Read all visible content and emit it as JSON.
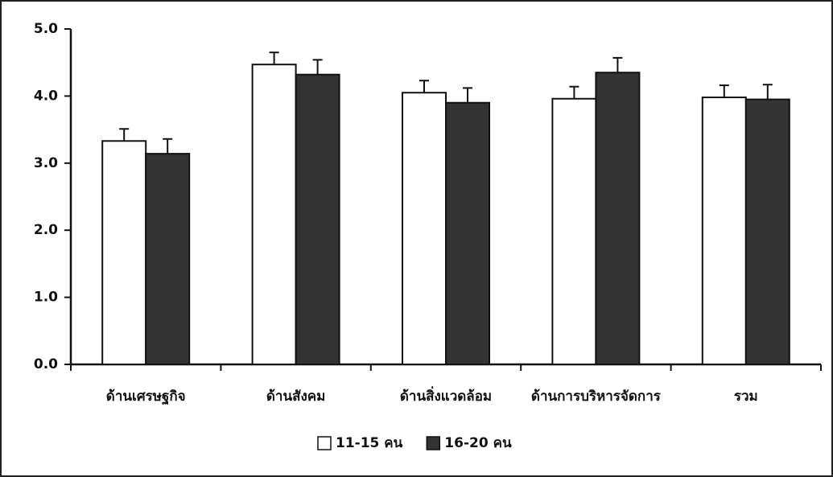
{
  "chart_data": {
    "type": "bar",
    "categories": [
      "ด้านเศรษฐกิจ",
      "ด้านสังคม",
      "ด้านสิ่งแวดล้อม",
      "ด้านการบริหารจัดการ",
      "รวม"
    ],
    "series": [
      {
        "name": "11-15 คน",
        "color": "#ffffff",
        "values": [
          3.33,
          4.47,
          4.05,
          3.96,
          3.98
        ],
        "errors": [
          0.18,
          0.18,
          0.18,
          0.18,
          0.18
        ]
      },
      {
        "name": "16-20 คน",
        "color": "#333333",
        "values": [
          3.14,
          4.32,
          3.9,
          4.35,
          3.95
        ],
        "errors": [
          0.22,
          0.22,
          0.22,
          0.22,
          0.22
        ]
      }
    ],
    "ylim": [
      0,
      5
    ],
    "yticks": [
      {
        "value": 0,
        "label": "0.0"
      },
      {
        "value": 1,
        "label": "1.0"
      },
      {
        "value": 2,
        "label": "2.0"
      },
      {
        "value": 3,
        "label": "3.0"
      },
      {
        "value": 4,
        "label": "4.0"
      },
      {
        "value": 5,
        "label": "5.0"
      }
    ],
    "legend": "bottom"
  }
}
